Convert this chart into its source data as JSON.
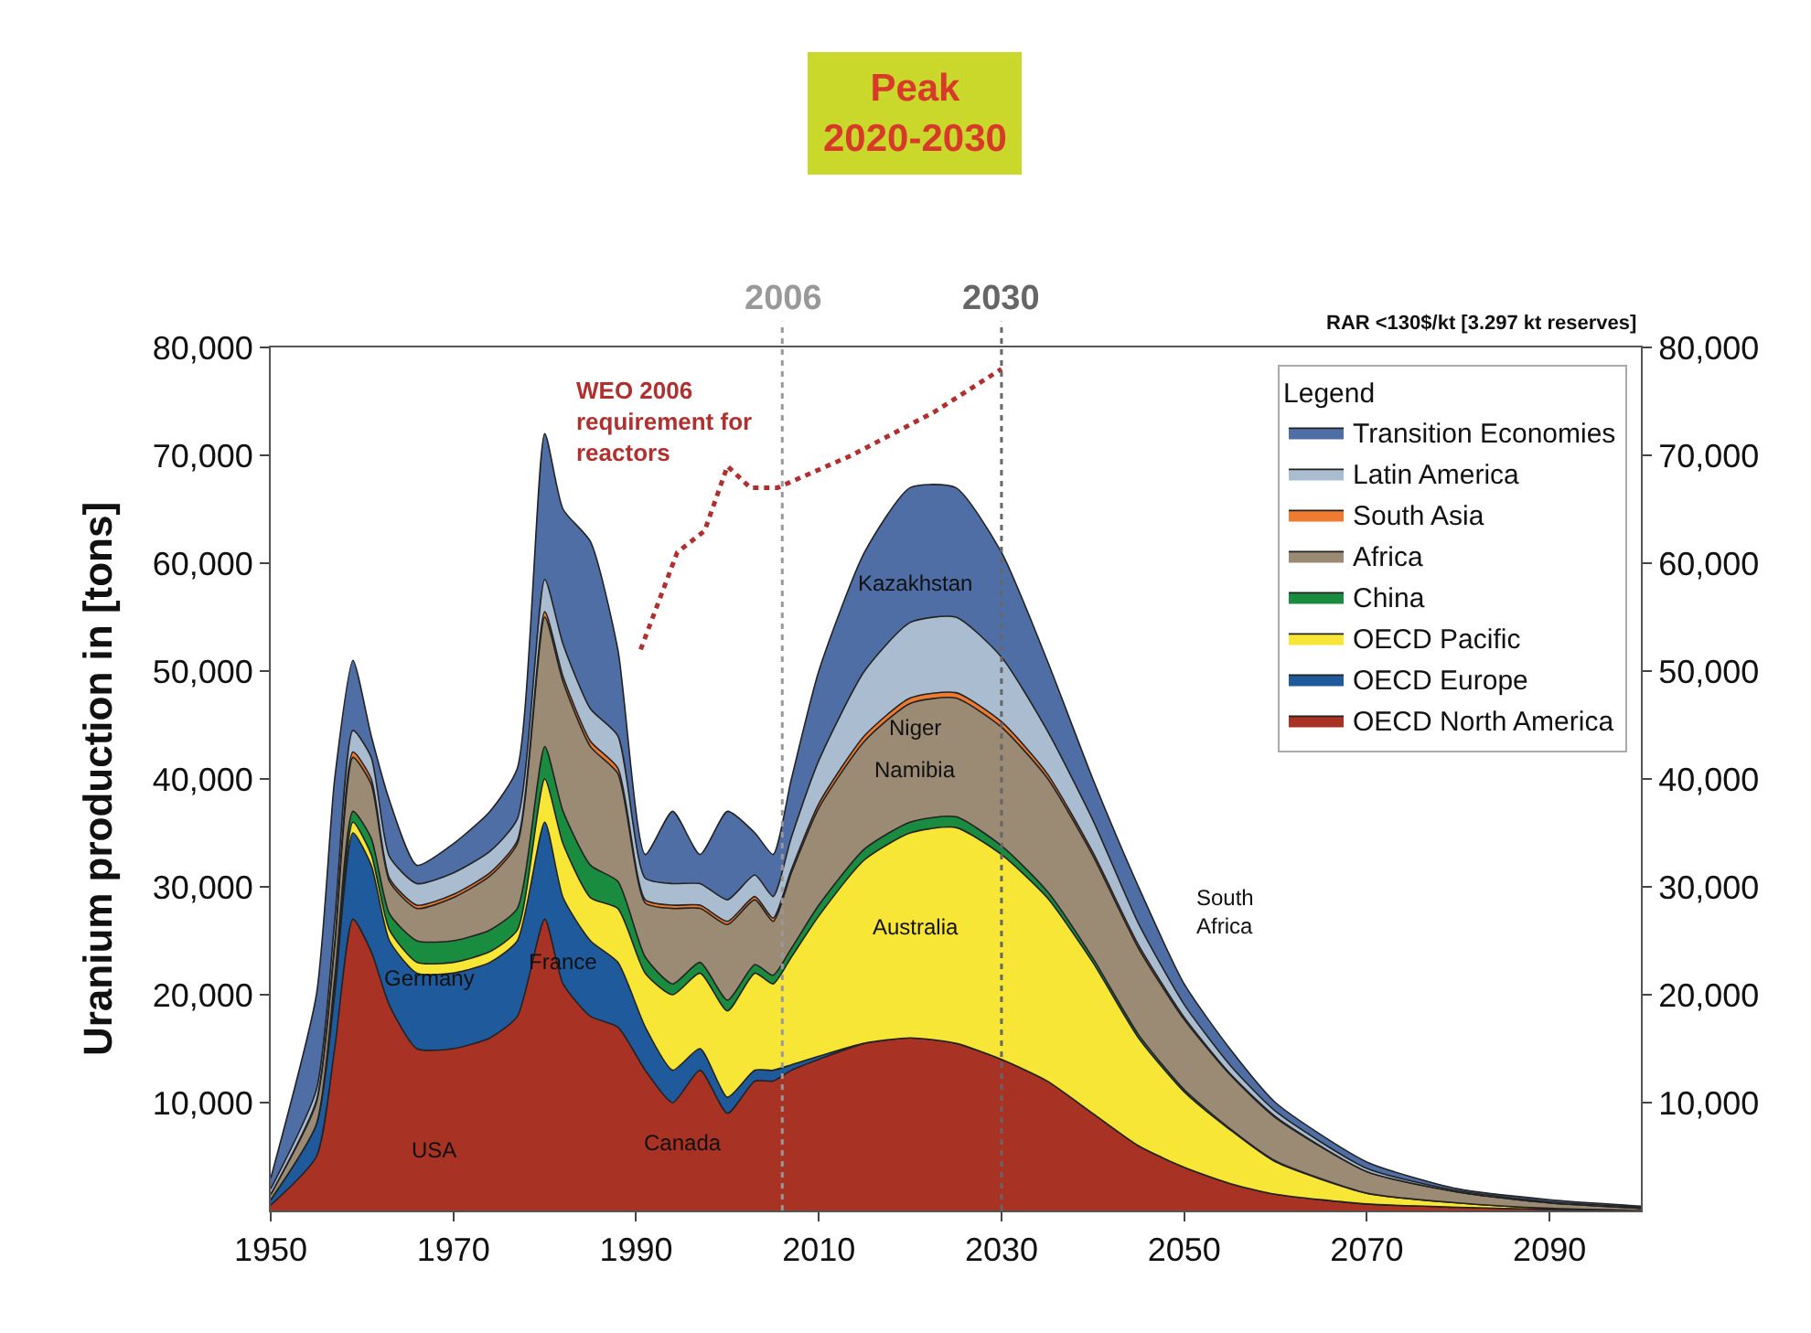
{
  "chart_data": {
    "type": "area",
    "stacked": true,
    "title": "Peak\n2020-2030",
    "ylabel": "Uranium production in [tons]",
    "x": [
      1950,
      1955,
      1957,
      1959,
      1961,
      1963,
      1966,
      1970,
      1974,
      1977,
      1980,
      1982,
      1985,
      1988,
      1991,
      1994,
      1997,
      2000,
      2003,
      2005,
      2007,
      2010,
      2015,
      2020,
      2025,
      2030,
      2035,
      2040,
      2045,
      2050,
      2055,
      2060,
      2070,
      2080,
      2090,
      2100
    ],
    "series": [
      {
        "name": "OECD North America",
        "color": "#a83224",
        "values": [
          500,
          5000,
          15000,
          27000,
          24000,
          19000,
          15000,
          15000,
          16000,
          18000,
          27000,
          21000,
          18000,
          17000,
          13000,
          10000,
          13000,
          9000,
          12000,
          12000,
          13000,
          14000,
          15500,
          16000,
          15500,
          14000,
          12000,
          9000,
          6000,
          4000,
          2500,
          1500,
          600,
          300,
          100,
          0
        ]
      },
      {
        "name": "OECD Europe",
        "color": "#1f5b9c",
        "values": [
          500,
          3000,
          5000,
          8000,
          8000,
          6000,
          7000,
          7000,
          7000,
          7000,
          9000,
          8000,
          7000,
          6000,
          4000,
          3000,
          2000,
          1500,
          1000,
          1000,
          500,
          300,
          0,
          0,
          0,
          0,
          0,
          0,
          0,
          0,
          0,
          0,
          0,
          0,
          0,
          0
        ]
      },
      {
        "name": "OECD Pacific",
        "color": "#f7e636",
        "values": [
          0,
          0,
          500,
          1000,
          1000,
          1000,
          1000,
          1000,
          1000,
          1000,
          4000,
          5000,
          4000,
          5000,
          5000,
          7000,
          7000,
          8000,
          9000,
          8000,
          10000,
          13000,
          17000,
          19000,
          20000,
          19000,
          17000,
          14000,
          10000,
          7000,
          5000,
          3000,
          1000,
          400,
          100,
          0
        ]
      },
      {
        "name": "China",
        "color": "#1a8c40",
        "values": [
          0,
          0,
          1000,
          1000,
          1500,
          1500,
          2000,
          2000,
          2000,
          2000,
          3000,
          3000,
          3000,
          2500,
          1500,
          1000,
          1000,
          1000,
          800,
          800,
          800,
          1000,
          1000,
          1000,
          1000,
          800,
          600,
          400,
          300,
          200,
          100,
          100,
          0,
          0,
          0,
          0
        ]
      },
      {
        "name": "Africa",
        "color": "#9b8a74",
        "values": [
          500,
          2000,
          3000,
          5000,
          5000,
          3000,
          3000,
          4000,
          5000,
          6000,
          12000,
          12000,
          11000,
          10000,
          5000,
          7000,
          5000,
          7000,
          6000,
          5000,
          7000,
          9000,
          10000,
          11000,
          11000,
          11000,
          10500,
          9500,
          8000,
          6500,
          5000,
          4000,
          2000,
          1000,
          500,
          200
        ]
      },
      {
        "name": "South Asia",
        "color": "#f07a30",
        "values": [
          0,
          200,
          300,
          500,
          500,
          300,
          300,
          300,
          300,
          300,
          500,
          500,
          500,
          500,
          300,
          300,
          300,
          300,
          300,
          300,
          300,
          400,
          500,
          500,
          500,
          500,
          400,
          300,
          300,
          200,
          100,
          100,
          0,
          0,
          0,
          0
        ]
      },
      {
        "name": "Latin America",
        "color": "#a9bcd0",
        "values": [
          500,
          1000,
          2000,
          2000,
          2000,
          2000,
          2000,
          2000,
          2000,
          2000,
          3000,
          3000,
          3000,
          3000,
          2000,
          2000,
          2000,
          2000,
          2000,
          2000,
          3000,
          4000,
          6000,
          7000,
          7000,
          6000,
          4000,
          3000,
          2000,
          1200,
          800,
          500,
          300,
          100,
          100,
          100
        ]
      },
      {
        "name": "Transition Economies",
        "color": "#4f6ea6",
        "values": [
          1000,
          8800,
          13200,
          6500,
          2000,
          5200,
          1700,
          2700,
          3700,
          4700,
          13500,
          12500,
          15500,
          8000,
          2200,
          6700,
          2700,
          8200,
          3900,
          3900,
          5400,
          8300,
          11000,
          12500,
          12000,
          9700,
          6500,
          3800,
          3400,
          1900,
          1500,
          800,
          600,
          200,
          200,
          100
        ]
      },
      {
        "name": "WEO 2006 requirement for reactors",
        "type": "line",
        "line_style": "dotted",
        "marker": "none",
        "color": "#b03030",
        "x": [
          1990.5,
          1994.5,
          1997.5,
          2000,
          2002.5,
          2005.5,
          2013.6,
          2022.6,
          2030
        ],
        "values": [
          52000,
          61000,
          63000,
          69000,
          67000,
          67000,
          70000,
          74000,
          78000
        ]
      }
    ],
    "xlim": [
      1950,
      2100
    ],
    "xticks": [
      1950,
      1970,
      1990,
      2010,
      2030,
      2050,
      2070,
      2090
    ],
    "ylim": [
      0,
      80000
    ],
    "yticks": [
      {
        "value": 10000,
        "label": "10,000"
      },
      {
        "value": 20000,
        "label": "20,000"
      },
      {
        "value": 30000,
        "label": "30,000"
      },
      {
        "value": 40000,
        "label": "40,000"
      },
      {
        "value": 50000,
        "label": "50,000"
      },
      {
        "value": 60000,
        "label": "60,000"
      },
      {
        "value": 70000,
        "label": "70,000"
      },
      {
        "value": 80000,
        "label": "80,000"
      }
    ],
    "y2lim": [
      0,
      80000
    ],
    "y2ticks": [
      {
        "value": 10000,
        "label": "10,000"
      },
      {
        "value": 20000,
        "label": "20,000"
      },
      {
        "value": 30000,
        "label": "30,000"
      },
      {
        "value": 40000,
        "label": "40,000"
      },
      {
        "value": 50000,
        "label": "50,000"
      },
      {
        "value": 60000,
        "label": "60,000"
      },
      {
        "value": 70000,
        "label": "70,000"
      },
      {
        "value": 80000,
        "label": "80,000"
      }
    ],
    "ref_lines": [
      {
        "axis": "x",
        "value": 2006,
        "label": "2006",
        "color": "#999999",
        "line_style": "dotted"
      },
      {
        "axis": "x",
        "value": 2030,
        "label": "2030",
        "color": "#666666",
        "line_style": "dotted"
      }
    ],
    "legend": "top right",
    "legend_title": "Legend",
    "annotations": [
      "RAR <130$/kt [3.297 kt reserves]",
      "USA",
      "Canada",
      "Germany",
      "France",
      "Australia",
      "Namibia",
      "Niger",
      "Kazakhstan",
      "South\nAfrica"
    ]
  }
}
